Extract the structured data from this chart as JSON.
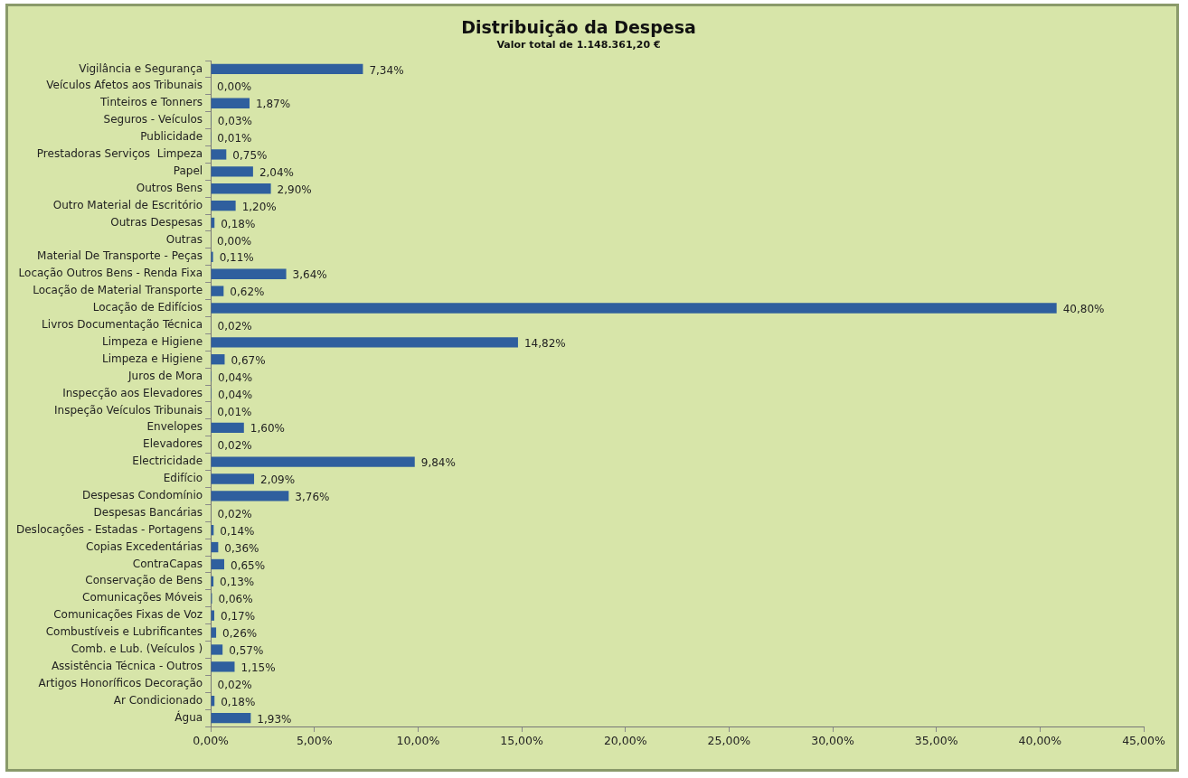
{
  "chart_data": {
    "type": "bar",
    "orientation": "horizontal",
    "title": "Distribuição da Despesa",
    "subtitle": "Valor total de 1.148.361,20 €",
    "categories": [
      "Vigilância e Segurança",
      "Veículos Afetos aos Tribunais",
      "Tinteiros e Tonners",
      "Seguros - Veículos",
      "Publicidade",
      "Prestadoras Serviços  Limpeza",
      "Papel",
      "Outros Bens",
      "Outro Material de Escritório",
      "Outras Despesas",
      "Outras",
      "Material De Transporte - Peças",
      "Locação Outros Bens - Renda Fixa",
      "Locação de Material Transporte",
      "Locação de Edifícios",
      "Livros Documentação Técnica",
      "Limpeza e Higiene",
      "Limpeza e Higiene",
      "Juros de Mora",
      "Inspecção aos Elevadores",
      "Inspeção Veículos Tribunais",
      "Envelopes",
      "Elevadores",
      "Electricidade",
      "Edifício",
      "Despesas Condomínio",
      "Despesas Bancárias",
      "Deslocações - Estadas - Portagens",
      "Copias Excedentárias",
      "ContraCapas",
      "Conservação de Bens",
      "Comunicações Móveis",
      "Comunicações Fixas de Voz",
      "Combustíveis e Lubrificantes",
      "Comb. e Lub. (Veículos )",
      "Assistência Técnica - Outros",
      "Artigos Honoríficos Decoração",
      "Ar Condicionado",
      "Água"
    ],
    "values": [
      7.34,
      0,
      1.87,
      0.03,
      0.01,
      0.75,
      2.04,
      2.9,
      1.2,
      0.18,
      0,
      0.11,
      3.64,
      0.62,
      40.8,
      0.02,
      14.82,
      0.67,
      0.04,
      0.04,
      0.01,
      1.6,
      0.02,
      9.84,
      2.09,
      3.76,
      0.02,
      0.14,
      0.36,
      0.65,
      0.13,
      0.06,
      0.17,
      0.26,
      0.57,
      1.15,
      0.02,
      0.18,
      1.93
    ],
    "value_labels": [
      "7,34%",
      "0,00%",
      "1,87%",
      "0,03%",
      "0,01%",
      "0,75%",
      "2,04%",
      "2,90%",
      "1,20%",
      "0,18%",
      "0,00%",
      "0,11%",
      "3,64%",
      "0,62%",
      "40,80%",
      "0,02%",
      "14,82%",
      "0,67%",
      "0,04%",
      "0,04%",
      "0,01%",
      "1,60%",
      "0,02%",
      "9,84%",
      "2,09%",
      "3,76%",
      "0,02%",
      "0,14%",
      "0,36%",
      "0,65%",
      "0,13%",
      "0,06%",
      "0,17%",
      "0,26%",
      "0,57%",
      "1,15%",
      "0,02%",
      "0,18%",
      "1,93%"
    ],
    "color": "#2f5f9e",
    "xlim": [
      0,
      45
    ],
    "xticks": [
      {
        "value": 0,
        "label": "0,00%"
      },
      {
        "value": 5,
        "label": "5,00%"
      },
      {
        "value": 10,
        "label": "10,00%"
      },
      {
        "value": 15,
        "label": "15,00%"
      },
      {
        "value": 20,
        "label": "20,00%"
      },
      {
        "value": 25,
        "label": "25,00%"
      },
      {
        "value": 30,
        "label": "30,00%"
      },
      {
        "value": 35,
        "label": "35,00%"
      },
      {
        "value": 40,
        "label": "40,00%"
      },
      {
        "value": 45,
        "label": "45,00%"
      }
    ],
    "grid": false,
    "legend": false
  }
}
